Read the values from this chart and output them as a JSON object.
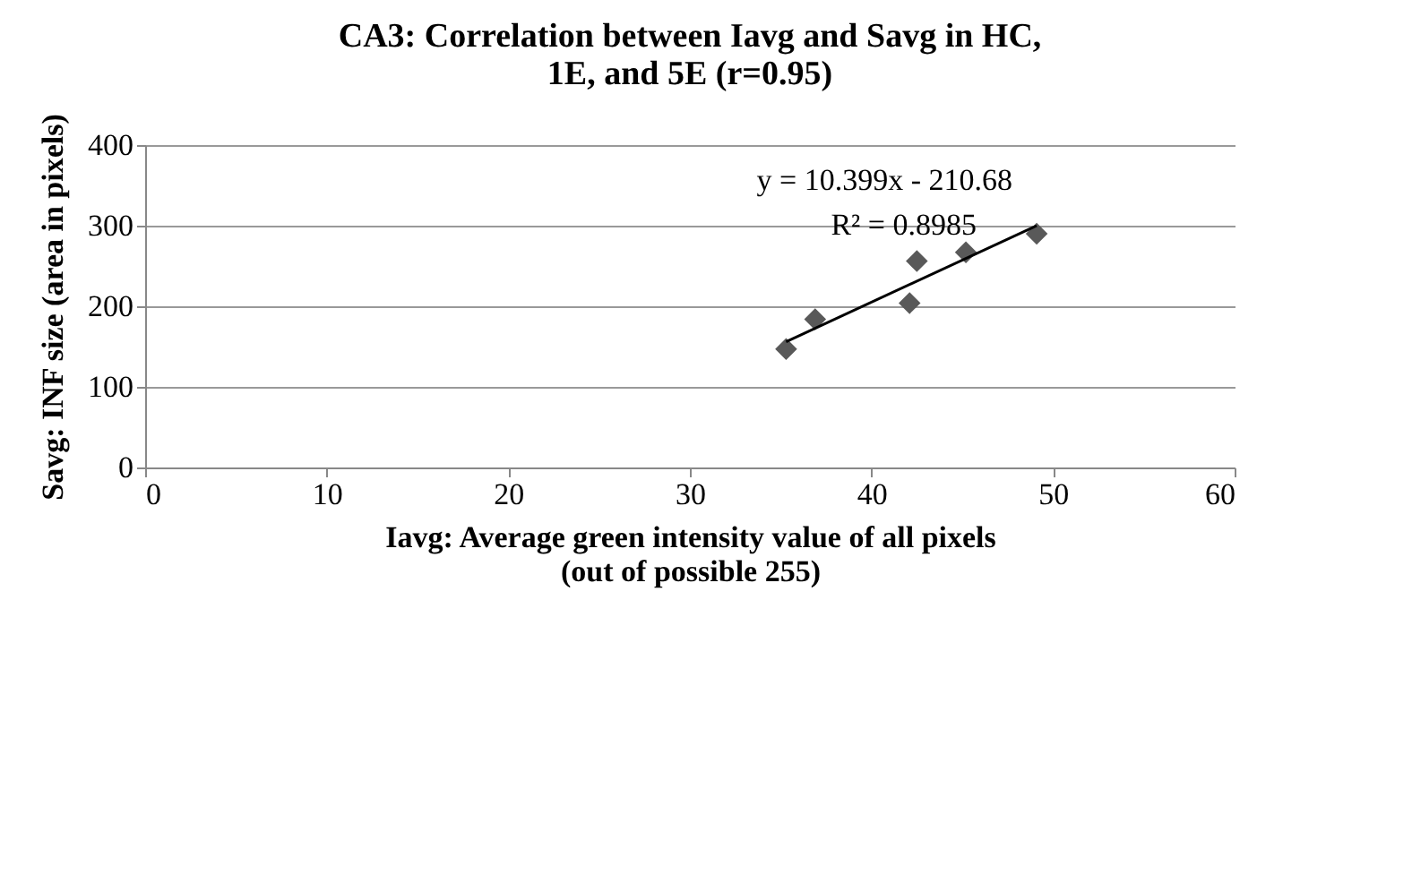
{
  "chart_data": {
    "type": "scatter",
    "title": "CA3: Correlation between Iavg and Savg in HC, 1E, and 5E (r=0.95)",
    "xlabel": "Iavg: Average green intensity value of all pixels (out of possible 255)",
    "ylabel": "Savg: INF size (area in pixels)",
    "x": [
      35.3,
      36.9,
      42.1,
      42.5,
      45.2,
      49.1
    ],
    "series": [
      {
        "color": "#595959",
        "marker": "diamond",
        "values": [
          147,
          184,
          204,
          256,
          267,
          290
        ]
      },
      {
        "type": "line",
        "color": "#000000",
        "x": [
          35.3,
          49.1
        ],
        "values": [
          156,
          300
        ]
      }
    ],
    "annotations": [
      "y = 10.399x - 210.68",
      "R² = 0.8985"
    ],
    "xlim": [
      0,
      60
    ],
    "xticks": [
      0,
      10,
      20,
      30,
      40,
      50,
      60
    ],
    "ylim": [
      0,
      400
    ],
    "yticks": [
      0,
      100,
      200,
      300,
      400
    ],
    "grid": "y"
  }
}
